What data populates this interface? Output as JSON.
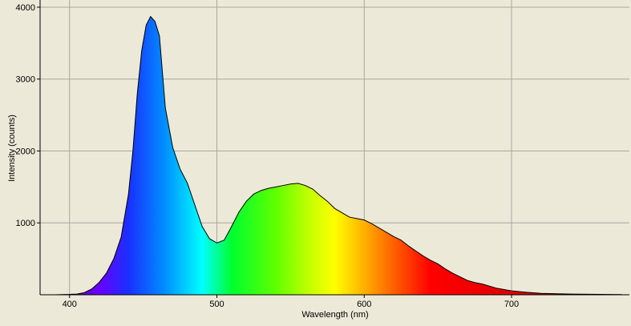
{
  "chart_data": {
    "type": "area",
    "xlabel": "Wavelength (nm)",
    "ylabel": "Intensity (counts)",
    "x": [
      380,
      390,
      400,
      405,
      410,
      415,
      420,
      425,
      430,
      435,
      440,
      443,
      446,
      449,
      452,
      455,
      458,
      461,
      465,
      470,
      475,
      480,
      485,
      490,
      495,
      500,
      505,
      510,
      515,
      520,
      525,
      530,
      535,
      540,
      545,
      550,
      555,
      560,
      565,
      570,
      575,
      580,
      585,
      590,
      595,
      600,
      605,
      610,
      615,
      620,
      625,
      630,
      635,
      640,
      645,
      650,
      655,
      660,
      665,
      670,
      675,
      680,
      690,
      700,
      710,
      720,
      740,
      760,
      775
    ],
    "values": [
      0,
      0,
      5,
      10,
      30,
      80,
      170,
      300,
      500,
      800,
      1400,
      2000,
      2800,
      3400,
      3750,
      3870,
      3800,
      3600,
      2600,
      2050,
      1750,
      1550,
      1250,
      950,
      780,
      720,
      760,
      950,
      1150,
      1300,
      1400,
      1450,
      1480,
      1500,
      1520,
      1540,
      1550,
      1520,
      1470,
      1380,
      1300,
      1200,
      1140,
      1080,
      1060,
      1040,
      990,
      930,
      870,
      810,
      760,
      680,
      610,
      540,
      480,
      430,
      360,
      300,
      250,
      200,
      170,
      150,
      90,
      55,
      35,
      20,
      10,
      6,
      3
    ],
    "xlim": [
      380,
      780
    ],
    "ylim": [
      0,
      4100
    ],
    "xticks": [
      400,
      500,
      600,
      700
    ],
    "yticks": [
      1000,
      2000,
      3000,
      4000
    ],
    "grid": true
  }
}
